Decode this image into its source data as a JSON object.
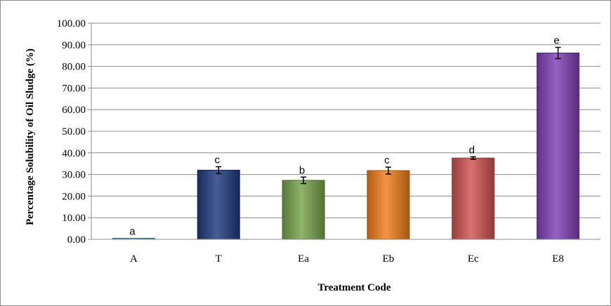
{
  "chart_data": {
    "type": "bar",
    "title": "",
    "xlabel": "Treatment Code",
    "ylabel": "Percentage Solubility of Oil Sludge (%)",
    "ylim": [
      0,
      100
    ],
    "yticks": [
      "0.00",
      "10.00",
      "20.00",
      "30.00",
      "40.00",
      "50.00",
      "60.00",
      "70.00",
      "80.00",
      "90.00",
      "100.00"
    ],
    "grid": true,
    "categories": [
      "A",
      "T",
      "Ea",
      "Eb",
      "Ec",
      "E8"
    ],
    "values": [
      0.5,
      32.0,
      27.3,
      31.8,
      37.6,
      86.2
    ],
    "errors": [
      0,
      1.6,
      1.5,
      1.6,
      0.6,
      2.6
    ],
    "labels": [
      "a",
      "c",
      "b",
      "c",
      "d",
      "e"
    ],
    "colors": [
      "#4bacc6",
      "#1f3a7d",
      "#77a34a",
      "#f07c18",
      "#cf5350",
      "#7f3fb5"
    ]
  }
}
